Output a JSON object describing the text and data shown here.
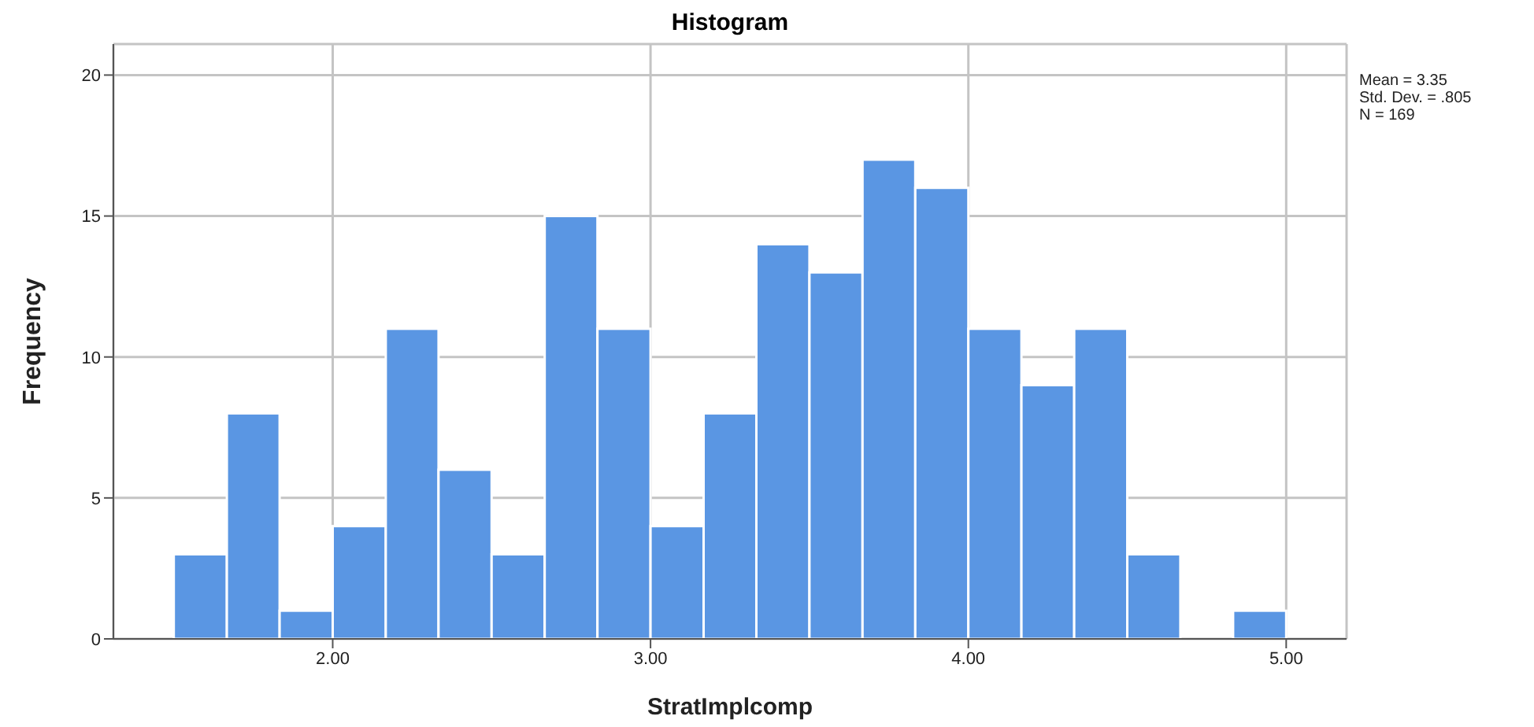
{
  "chart_data": {
    "type": "histogram",
    "title": "Histogram",
    "xlabel": "StratImplcomp",
    "ylabel": "Frequency",
    "bins": [
      1.5,
      1.667,
      1.833,
      2.0,
      2.167,
      2.333,
      2.5,
      2.667,
      2.833,
      3.0,
      3.167,
      3.333,
      3.5,
      3.667,
      3.833,
      4.0,
      4.167,
      4.333,
      4.5,
      4.667,
      4.833,
      5.0
    ],
    "values": [
      3,
      8,
      1,
      4,
      11,
      6,
      3,
      15,
      11,
      4,
      8,
      14,
      13,
      17,
      16,
      11,
      9,
      11,
      3,
      0,
      1
    ],
    "color": "#5a96e3",
    "xlim": [
      1.31,
      5.19
    ],
    "xticks": [
      {
        "value": 2,
        "label": "2.00"
      },
      {
        "value": 3,
        "label": "3.00"
      },
      {
        "value": 4,
        "label": "4.00"
      },
      {
        "value": 5,
        "label": "5.00"
      }
    ],
    "ylim": [
      0,
      21.1
    ],
    "yticks": [
      0,
      5,
      10,
      15,
      20
    ],
    "grid": true,
    "annotations": [
      "Mean = 3.35",
      "Std. Dev. = .805",
      "N = 169"
    ]
  }
}
